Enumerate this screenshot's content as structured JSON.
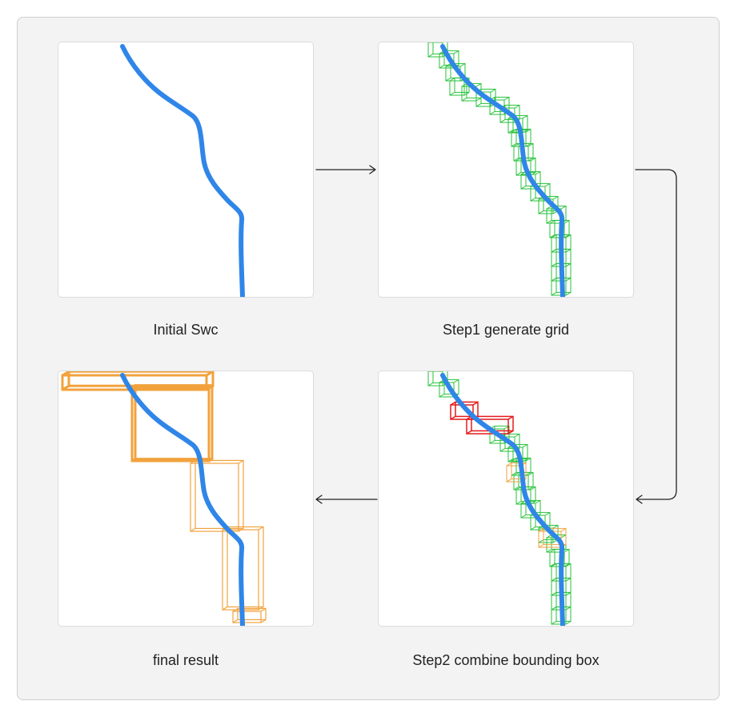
{
  "panels": {
    "initial": {
      "caption": "Initial Swc"
    },
    "step1": {
      "caption": "Step1 generate grid"
    },
    "step2": {
      "caption": "Step2 combine bounding box"
    },
    "final": {
      "caption": "final result"
    }
  },
  "colors": {
    "swc": "#2f86e8",
    "grid": "#27c23a",
    "merged": "#e41a1a",
    "combined": "#f2a23c"
  },
  "edges": [
    {
      "from": "initial",
      "to": "step1"
    },
    {
      "from": "step1",
      "to": "step2"
    },
    {
      "from": "step2",
      "to": "final"
    }
  ]
}
